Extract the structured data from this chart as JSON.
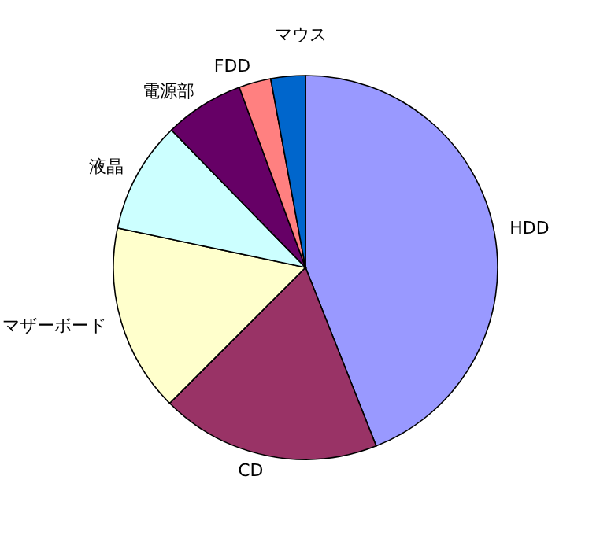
{
  "chart_data": {
    "type": "pie",
    "categories": [
      "HDD",
      "CD",
      "マザーボード",
      "液晶",
      "電源部",
      "FDD",
      "マウス"
    ],
    "values": [
      44,
      18.5,
      15.8,
      9.4,
      6.7,
      2.7,
      2.9
    ],
    "colors": [
      "#9999ff",
      "#993366",
      "#ffffcc",
      "#ccffff",
      "#660066",
      "#ff8080",
      "#0066cc"
    ]
  }
}
